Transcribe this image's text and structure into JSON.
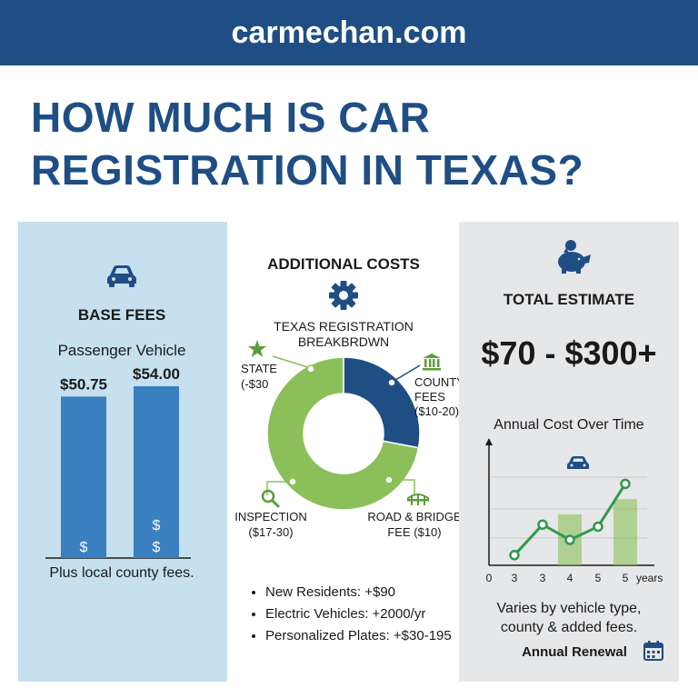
{
  "site": "carmechan.com",
  "headline": {
    "line1": "HOW MUCH IS CAR",
    "line2": "REGISTRATION IN TEXAS?"
  },
  "colors": {
    "brand": "#1f4e84",
    "bar": "#3a7fbf",
    "green": "#8bbf5a",
    "dark_green": "#2e9a4a",
    "left_panel": "#c6e0ef",
    "right_panel": "#e6e7e9"
  },
  "base_fees": {
    "icon": "car-icon",
    "title": "BASE FEES",
    "subtitle": "Passenger Vehicle",
    "footnote": "Plus local county fees."
  },
  "additional": {
    "title": "ADDITIONAL COSTS",
    "icon": "gear-icon",
    "donut_title_line1": "TEXAS REGISTRATION",
    "donut_title_line2": "BREAKBRDWN",
    "labels": {
      "state_1": "STATE",
      "state_2": "(-$30",
      "county_1": "COUNTY",
      "county_2": "FEES",
      "county_3": "($10-20)",
      "inspection_1": "INSPECTION",
      "inspection_2": "($17-30)",
      "road_1": "ROAD & BRIDGE",
      "road_2": "FEE ($10)"
    },
    "notes": [
      "New Residents: +$90",
      "Electric Vehicles: +2000/yr",
      "Personalized Plates: +$30-195"
    ]
  },
  "total": {
    "icon": "piggy-bank-icon",
    "title": "TOTAL ESTIMATE",
    "range": "$70 - $300+",
    "chart_title": "Annual Cost Over Time",
    "footnote_line1": "Varies by vehicle type,",
    "footnote_line2": "county & added fees.",
    "renewal": "Annual Renewal",
    "renewal_icon": "calendar-icon"
  },
  "chart_data": [
    {
      "type": "bar",
      "title": "BASE FEES",
      "categories": [
        "",
        ""
      ],
      "values": [
        50.75,
        54.0
      ],
      "data_labels": [
        "$50.75",
        "$54.00"
      ],
      "bar_symbols": [
        "$",
        "$ $"
      ],
      "ylim": [
        0,
        100
      ]
    },
    {
      "type": "pie",
      "title": "TEXAS REGISTRATION BREAKBRDWN",
      "donut": true,
      "slices": [
        {
          "label": "COUNTY FEES",
          "value": 28,
          "color": "#1f4e84"
        },
        {
          "label": "ROAD & BRIDGE FEE / INSPECTION / STATE",
          "value": 72,
          "color": "#8bbf5a"
        }
      ]
    },
    {
      "type": "line",
      "title": "Annual Cost Over Time",
      "x_ticks": [
        "0",
        "3",
        "3",
        "4",
        "5",
        "5"
      ],
      "x_unit": "years",
      "ylim": [
        0,
        100
      ],
      "series": [
        {
          "values": [
            10,
            40,
            25,
            38,
            80
          ]
        }
      ],
      "bars": [
        {
          "x_index": 3,
          "value": 50
        },
        {
          "x_index": 5,
          "value": 65
        }
      ],
      "grid": true
    }
  ]
}
